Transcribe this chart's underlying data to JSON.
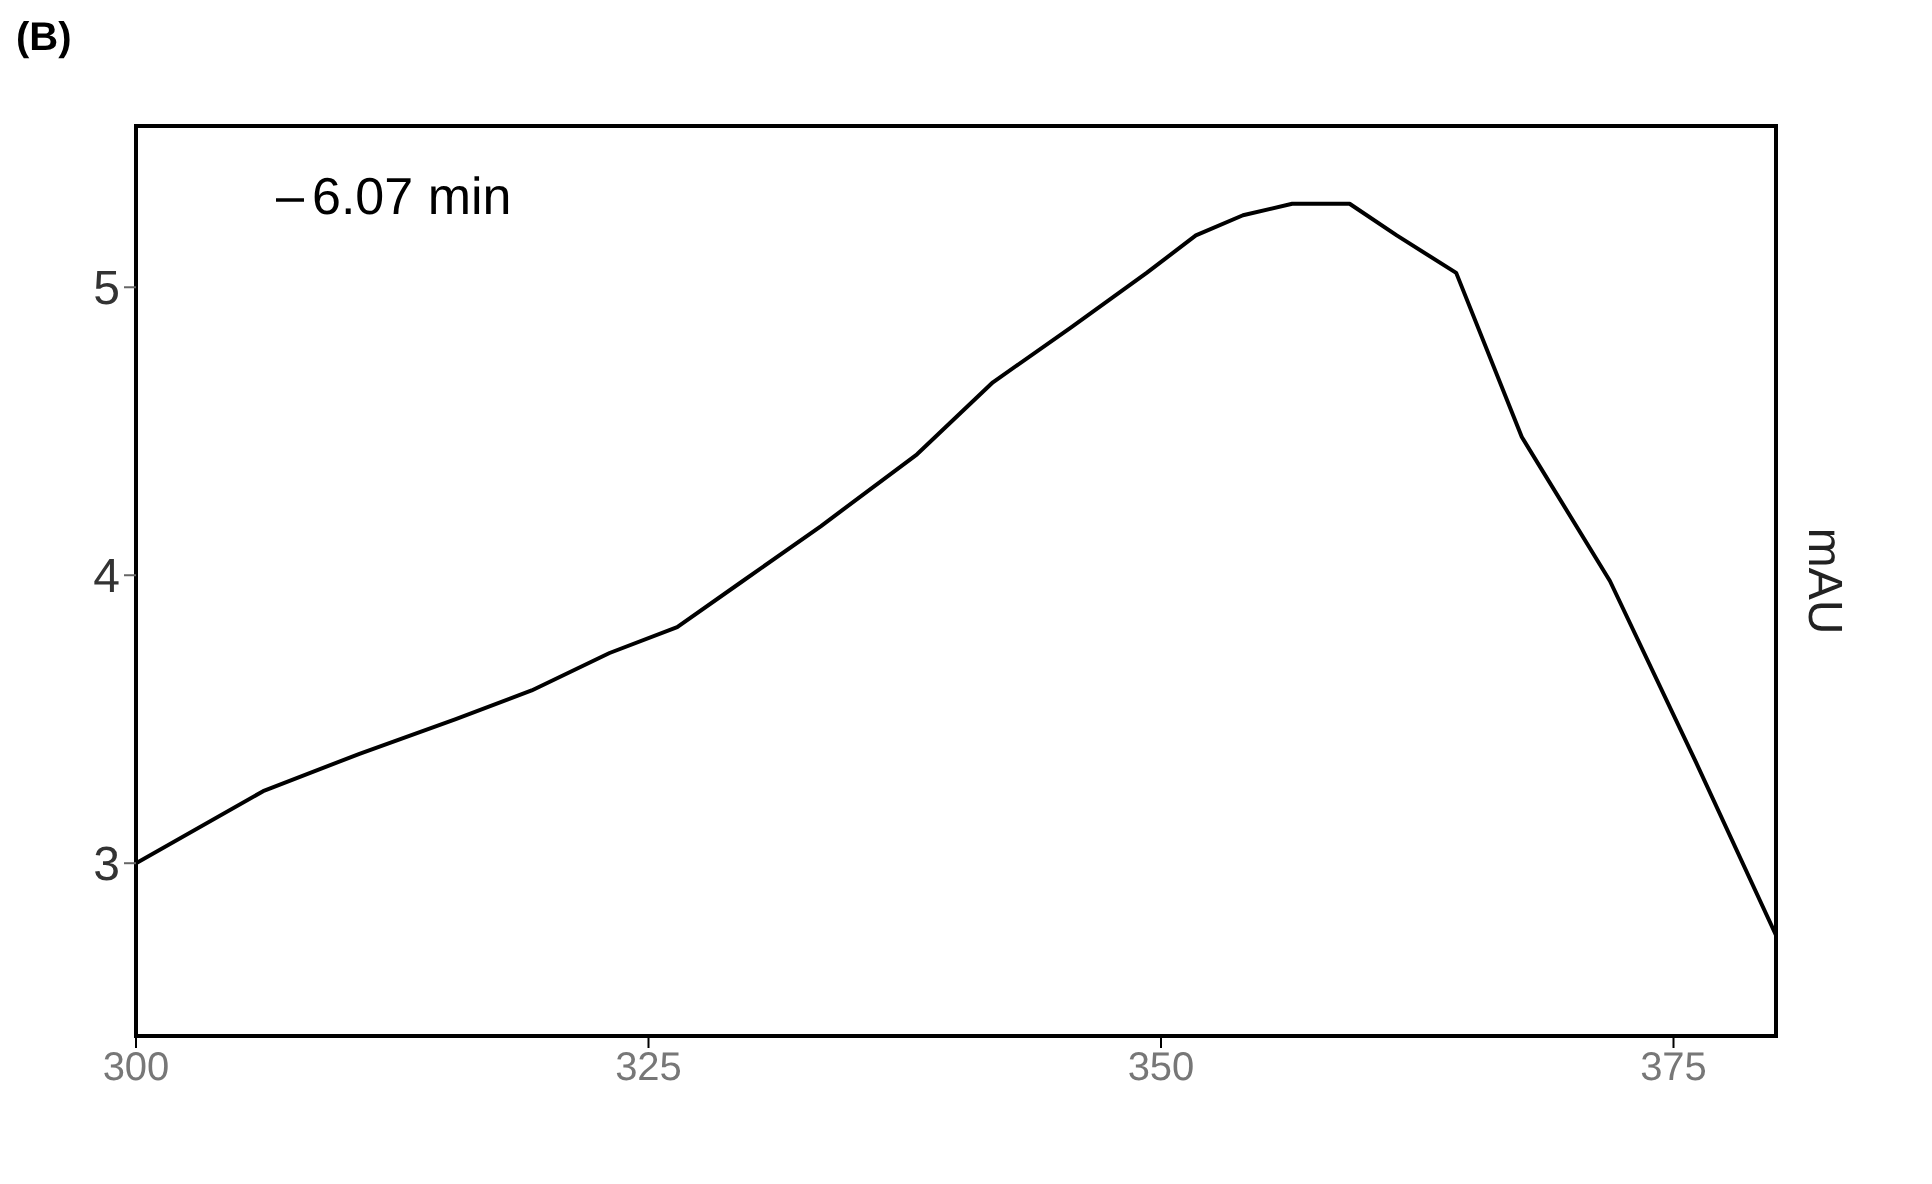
{
  "chart_data": {
    "type": "line",
    "ylabel": "mAU",
    "annotations": [
      "(B)"
    ],
    "xlim": [
      300,
      380
    ],
    "xticks": [
      300,
      325,
      350,
      375
    ],
    "ylim": [
      2.4,
      5.56
    ],
    "yticks": [
      3,
      4,
      5
    ],
    "legend": "top left",
    "grid": false,
    "marker": "none",
    "line_style": "solid",
    "series": [
      {
        "name": "6.07 min",
        "color": "#000000",
        "x": [
          300,
          306.2,
          310.9,
          315.6,
          319.3,
          323.1,
          326.4,
          329.6,
          333.4,
          338.1,
          341.8,
          345.6,
          349.3,
          351.7,
          354,
          356.4,
          359.2,
          361.5,
          364.4,
          367.6,
          371.9,
          376.1,
          380
        ],
        "values": [
          3,
          3.25,
          3.38,
          3.5,
          3.6,
          3.73,
          3.82,
          3.98,
          4.17,
          4.42,
          4.67,
          4.86,
          5.05,
          5.18,
          5.25,
          5.29,
          5.29,
          5.18,
          5.05,
          4.48,
          3.98,
          3.35,
          2.75
        ]
      }
    ]
  }
}
